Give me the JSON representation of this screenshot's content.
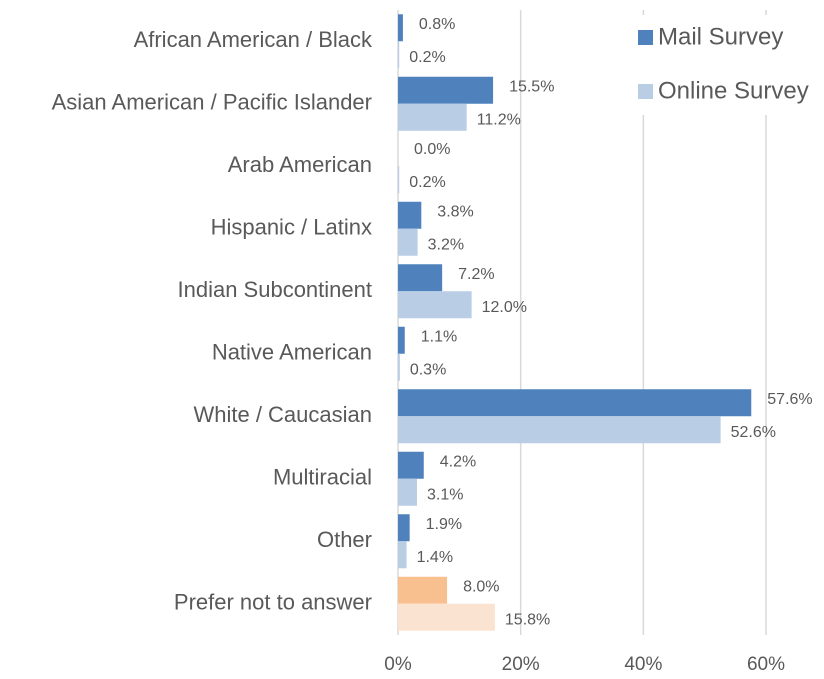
{
  "chart_data": {
    "type": "bar",
    "orientation": "horizontal",
    "categories": [
      "African American / Black",
      "Asian American / Pacific Islander",
      "Arab American",
      "Hispanic / Latinx",
      "Indian Subcontinent",
      "Native American",
      "White / Caucasian",
      "Multiracial",
      "Other",
      "Prefer not to answer"
    ],
    "series": [
      {
        "name": "Mail Survey",
        "color": "#4f81bd",
        "colors": [
          "#4f81bd",
          "#4f81bd",
          "#4f81bd",
          "#4f81bd",
          "#4f81bd",
          "#4f81bd",
          "#4f81bd",
          "#4f81bd",
          "#4f81bd",
          "#f8bf8f"
        ],
        "values": [
          0.8,
          15.5,
          0.0,
          3.8,
          7.2,
          1.1,
          57.6,
          4.2,
          1.9,
          8.0
        ],
        "value_labels": [
          "0.8%",
          "15.5%",
          "0.0%",
          "3.8%",
          "7.2%",
          "1.1%",
          "57.6%",
          "4.2%",
          "1.9%",
          "8.0%"
        ]
      },
      {
        "name": "Online Survey",
        "color": "#b9cde5",
        "colors": [
          "#b9cde5",
          "#b9cde5",
          "#b9cde5",
          "#b9cde5",
          "#b9cde5",
          "#b9cde5",
          "#b9cde5",
          "#b9cde5",
          "#b9cde5",
          "#fbe3d1"
        ],
        "values": [
          0.2,
          11.2,
          0.2,
          3.2,
          12.0,
          0.3,
          52.6,
          3.1,
          1.4,
          15.8
        ],
        "value_labels": [
          "0.2%",
          "11.2%",
          "0.2%",
          "3.2%",
          "12.0%",
          "0.3%",
          "52.6%",
          "3.1%",
          "1.4%",
          "15.8%"
        ]
      }
    ],
    "xlim": [
      0,
      70
    ],
    "xticks": [
      {
        "value": 0,
        "label": "0%"
      },
      {
        "value": 20,
        "label": "20%"
      },
      {
        "value": 40,
        "label": "40%"
      },
      {
        "value": 60,
        "label": "60%"
      }
    ],
    "grid": true,
    "legend": "top-right"
  }
}
